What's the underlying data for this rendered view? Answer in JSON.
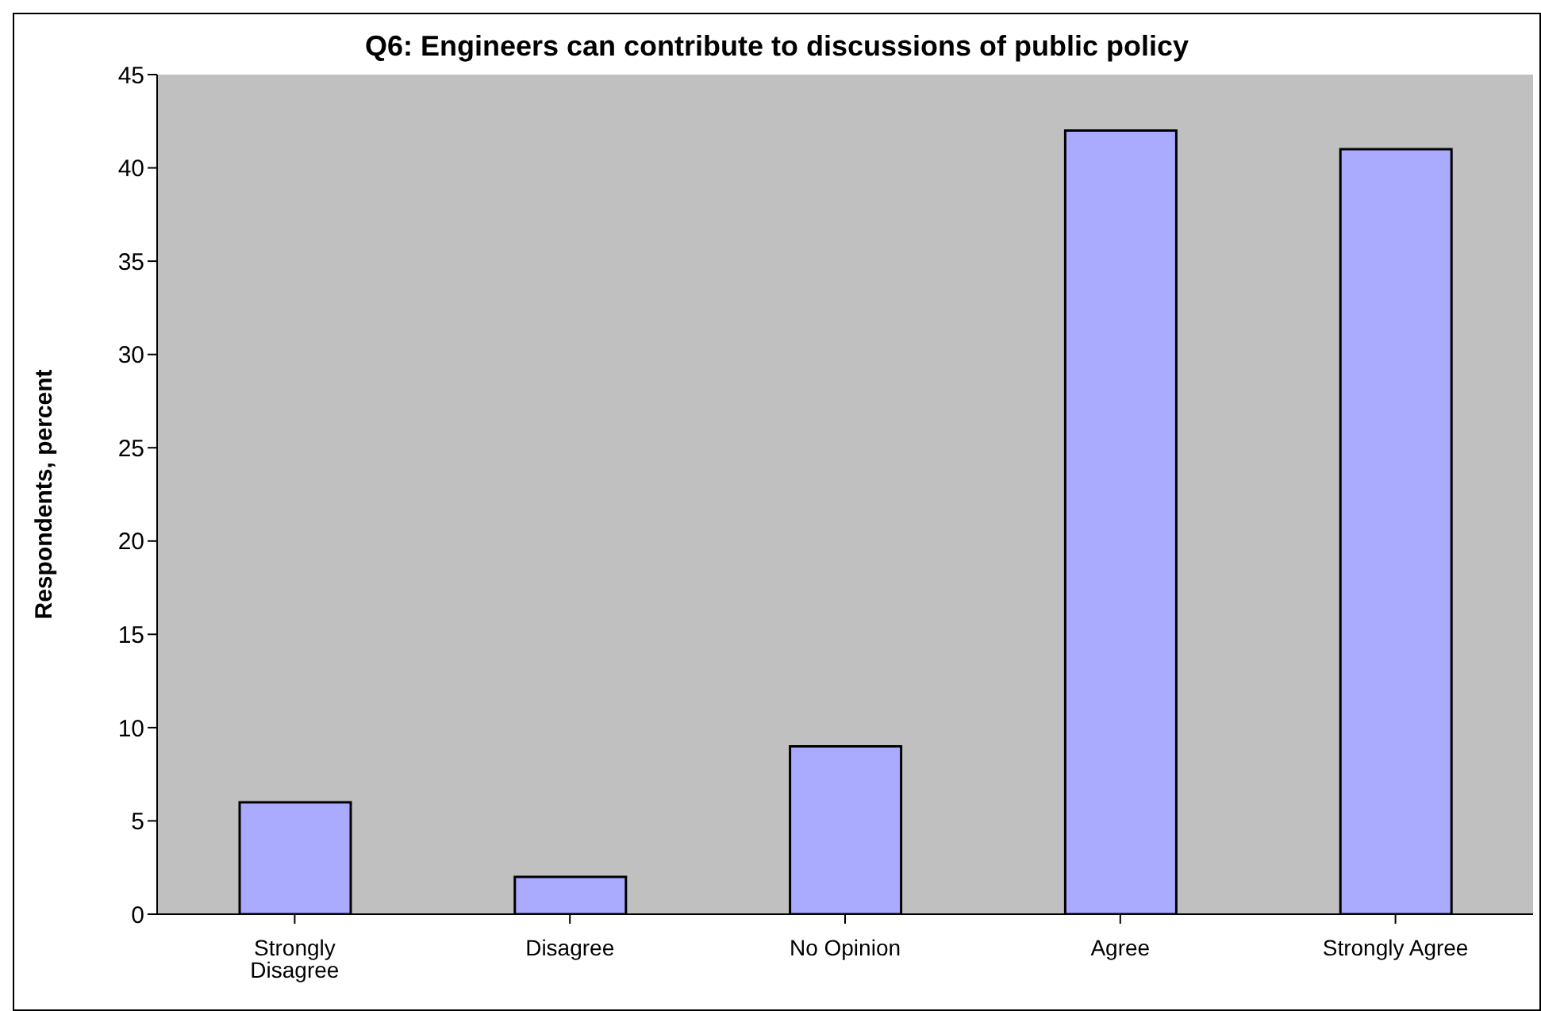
{
  "chart_data": {
    "type": "bar",
    "title": "Q6: Engineers can contribute to discussions of public policy",
    "ylabel": "Respondents, percent",
    "categories": [
      "Strongly Disagree",
      "Disagree",
      "No Opinion",
      "Agree",
      "Strongly Agree"
    ],
    "values": [
      6,
      2,
      9,
      42,
      41
    ],
    "color": "#aaaaff",
    "ylim": [
      0,
      45
    ],
    "yticks": [
      0,
      5,
      10,
      15,
      20,
      25,
      30,
      35,
      40,
      45
    ]
  }
}
